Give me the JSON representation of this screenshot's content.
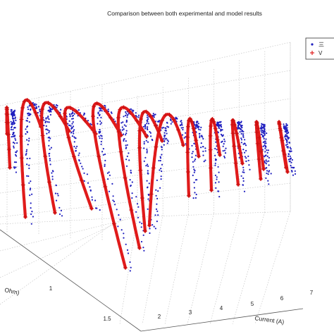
{
  "chart_data": {
    "type": "scatter",
    "title": "Comparison between both experimental and model results",
    "xlabel": "Current (A)",
    "ylabel": "Ohm)",
    "x_ticks": [
      "2",
      "3",
      "4",
      "5",
      "6",
      "7"
    ],
    "y_ticks": [
      "1",
      "1.5"
    ],
    "grid": true,
    "legend_position": "top-right",
    "series": [
      {
        "name": "三",
        "marker": "dot",
        "color": "#1f1fbf"
      },
      {
        "name": "V",
        "marker": "plus",
        "color": "#e01b1b"
      }
    ],
    "curves": [
      {
        "current": 1.0,
        "start": [
          14,
          238
        ],
        "apex": [
          10,
          160
        ],
        "end": [
          10,
          190
        ]
      },
      {
        "current": 1.5,
        "start": [
          36,
          308
        ],
        "apex": [
          32,
          158
        ],
        "end": [
          58,
          180
        ]
      },
      {
        "current": 2.0,
        "start": [
          78,
          302
        ],
        "apex": [
          60,
          160
        ],
        "end": [
          98,
          186
        ]
      },
      {
        "current": 2.5,
        "start": [
          130,
          296
        ],
        "apex": [
          92,
          166
        ],
        "end": [
          136,
          190
        ]
      },
      {
        "current": 3.0,
        "start": [
          178,
          380
        ],
        "apex": [
          132,
          170
        ],
        "end": [
          172,
          192
        ]
      },
      {
        "current": 3.5,
        "start": [
          198,
          352
        ],
        "apex": [
          168,
          172
        ],
        "end": [
          208,
          194
        ]
      },
      {
        "current": 4.0,
        "start": [
          206,
          328
        ],
        "apex": [
          200,
          174
        ],
        "end": [
          230,
          200
        ]
      },
      {
        "current": 4.5,
        "start": [
          212,
          320
        ],
        "apex": [
          230,
          176
        ],
        "end": [
          260,
          206
        ]
      },
      {
        "current": 5.0,
        "start": [
          268,
          278
        ],
        "apex": [
          268,
          176
        ],
        "end": [
          282,
          222
        ]
      },
      {
        "current": 5.5,
        "start": [
          300,
          270
        ],
        "apex": [
          300,
          176
        ],
        "end": [
          312,
          220
        ]
      },
      {
        "current": 6.0,
        "start": [
          338,
          262
        ],
        "apex": [
          330,
          176
        ],
        "end": [
          344,
          232
        ]
      },
      {
        "current": 6.5,
        "start": [
          370,
          254
        ],
        "apex": [
          364,
          178
        ],
        "end": [
          374,
          240
        ]
      },
      {
        "current": 7.0,
        "start": [
          408,
          244
        ],
        "apex": [
          396,
          178
        ],
        "end": [
          406,
          238
        ]
      }
    ]
  }
}
